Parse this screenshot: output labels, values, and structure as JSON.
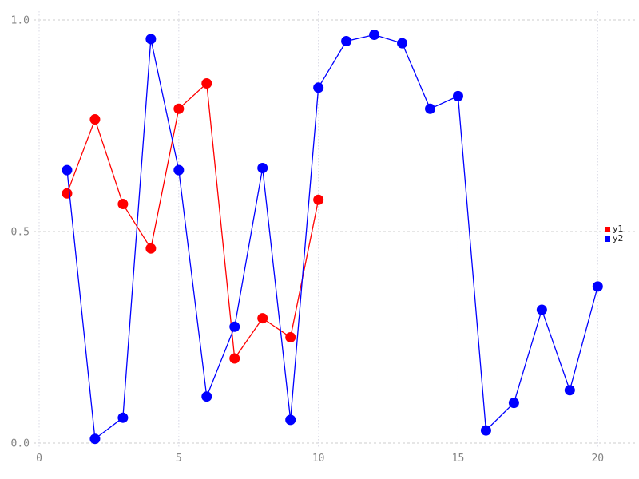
{
  "chart_data": {
    "type": "line",
    "title": "",
    "xlabel": "",
    "ylabel": "",
    "xlim": [
      0,
      20
    ],
    "ylim": [
      0.0,
      1.0
    ],
    "xticks": [
      0,
      5,
      10,
      15,
      20
    ],
    "xtick_labels": [
      "0",
      "5",
      "10",
      "15",
      "20"
    ],
    "yticks": [
      0.0,
      0.5,
      1.0
    ],
    "ytick_labels": [
      "0.0",
      "0.5",
      "1.0"
    ],
    "grid": true,
    "legend_position": "right",
    "series": [
      {
        "name": "y1",
        "color": "#ff0000",
        "x": [
          1,
          2,
          3,
          4,
          5,
          6,
          7,
          8,
          9,
          10
        ],
        "values": [
          0.59,
          0.765,
          0.565,
          0.46,
          0.79,
          0.85,
          0.2,
          0.295,
          0.25,
          0.575
        ]
      },
      {
        "name": "y2",
        "color": "#0000ff",
        "x": [
          1,
          2,
          3,
          4,
          5,
          6,
          7,
          8,
          9,
          10,
          11,
          12,
          13,
          14,
          15,
          16,
          17,
          18,
          19,
          20
        ],
        "values": [
          0.645,
          0.01,
          0.06,
          0.955,
          0.645,
          0.11,
          0.275,
          0.65,
          0.055,
          0.84,
          0.95,
          0.965,
          0.945,
          0.79,
          0.82,
          0.03,
          0.095,
          0.315,
          0.125,
          0.37
        ]
      }
    ]
  },
  "legend": {
    "items": [
      {
        "label": "y1",
        "color": "#ff0000"
      },
      {
        "label": "y2",
        "color": "#0000ff"
      }
    ]
  },
  "colors": {
    "grid_horizontal": "#cccccc",
    "grid_vertical": "#d8d8e4",
    "tick_text": "#848484",
    "background": "#ffffff"
  }
}
